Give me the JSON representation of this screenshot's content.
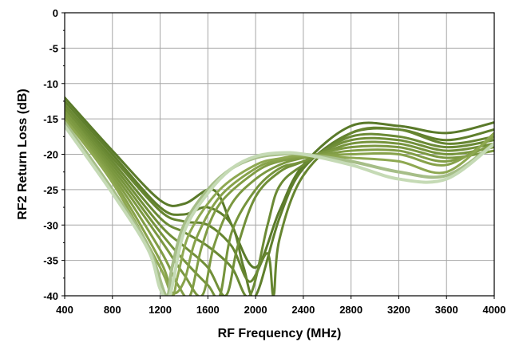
{
  "chart_data": {
    "type": "line",
    "xlabel": "RF Frequency (MHz)",
    "ylabel": "RF2 Return Loss (dB)",
    "xlim": [
      400,
      4000
    ],
    "ylim": [
      -40,
      0
    ],
    "grid": true,
    "x_ticks": [
      "400",
      "800",
      "1200",
      "1600",
      "2000",
      "2400",
      "2800",
      "3200",
      "3600",
      "4000"
    ],
    "y_ticks": [
      "0",
      "-5",
      "-10",
      "-15",
      "-20",
      "-25",
      "-30",
      "-35",
      "-40"
    ],
    "colors": {
      "dark": "#5f7f2c",
      "light": "#c8dcb8",
      "grid": "#a6a6a6"
    },
    "series": [
      {
        "color": "#5a7a2a",
        "x": [
          400,
          800,
          1200,
          1400,
          1600,
          1700,
          1800,
          2000,
          2200,
          2400,
          2800,
          3200,
          3600,
          4000
        ],
        "y": [
          -12.0,
          -19.5,
          -26.5,
          -27.0,
          -25.0,
          -26.0,
          -30.0,
          -36.0,
          -28.0,
          -21.5,
          -16.0,
          -16.0,
          -17.0,
          -15.5
        ]
      },
      {
        "color": "#5f7f2c",
        "x": [
          400,
          800,
          1200,
          1400,
          1600,
          1800,
          1900,
          2000,
          2200,
          2400,
          2800,
          3200,
          3600,
          4000
        ],
        "y": [
          -12.5,
          -20.0,
          -27.5,
          -28.5,
          -27.5,
          -30.0,
          -36.0,
          -40.0,
          -29.0,
          -22.0,
          -17.0,
          -16.5,
          -18.0,
          -16.5
        ]
      },
      {
        "color": "#668530",
        "x": [
          400,
          800,
          1200,
          1400,
          1600,
          1800,
          1950,
          2100,
          2150,
          2200,
          2400,
          2800,
          3200,
          3600,
          4000
        ],
        "y": [
          -13.0,
          -20.5,
          -28.0,
          -29.5,
          -30.0,
          -33.0,
          -38.0,
          -34.0,
          -40.0,
          -32.0,
          -23.0,
          -17.0,
          -16.5,
          -18.5,
          -17.5
        ]
      },
      {
        "color": "#6b8a35",
        "x": [
          400,
          800,
          1200,
          1400,
          1600,
          1800,
          1950,
          2100,
          2200,
          2400,
          2800,
          3200,
          3600,
          4000
        ],
        "y": [
          -13.0,
          -21.0,
          -29.0,
          -31.0,
          -33.0,
          -36.0,
          -40.0,
          -30.0,
          -24.5,
          -21.5,
          -17.5,
          -17.5,
          -19.0,
          -18.0
        ]
      },
      {
        "color": "#718f38",
        "x": [
          400,
          800,
          1200,
          1400,
          1600,
          1750,
          1850,
          2000,
          2200,
          2400,
          2800,
          3200,
          3600,
          4000
        ],
        "y": [
          -13.5,
          -21.5,
          -30.0,
          -33.0,
          -36.0,
          -40.0,
          -33.0,
          -26.0,
          -22.5,
          -21.0,
          -18.0,
          -18.0,
          -19.5,
          -18.5
        ]
      },
      {
        "color": "#76943c",
        "x": [
          400,
          800,
          1200,
          1400,
          1600,
          1700,
          1800,
          2000,
          2200,
          2400,
          2800,
          3200,
          3600,
          4000
        ],
        "y": [
          -14.0,
          -22.0,
          -31.0,
          -35.0,
          -38.5,
          -40.0,
          -31.0,
          -25.0,
          -22.0,
          -21.0,
          -18.5,
          -18.5,
          -20.0,
          -19.0
        ]
      },
      {
        "color": "#7b9840",
        "x": [
          400,
          800,
          1200,
          1400,
          1550,
          1650,
          1800,
          2000,
          2200,
          2400,
          2800,
          3200,
          3600,
          4000
        ],
        "y": [
          -14.0,
          -22.5,
          -32.0,
          -37.0,
          -40.0,
          -33.0,
          -27.0,
          -23.5,
          -21.5,
          -20.5,
          -19.0,
          -19.0,
          -20.5,
          -19.5
        ]
      },
      {
        "color": "#819d45",
        "x": [
          400,
          800,
          1200,
          1350,
          1450,
          1550,
          1700,
          2000,
          2200,
          2400,
          2800,
          3200,
          3600,
          4000
        ],
        "y": [
          -14.5,
          -23.0,
          -33.5,
          -38.5,
          -40.0,
          -33.0,
          -27.0,
          -22.5,
          -21.0,
          -20.5,
          -19.5,
          -19.5,
          -21.0,
          -18.5
        ]
      },
      {
        "color": "#87a24a",
        "x": [
          400,
          800,
          1200,
          1300,
          1400,
          1500,
          1700,
          2000,
          2200,
          2400,
          2800,
          3200,
          3600,
          4000
        ],
        "y": [
          -15.0,
          -23.5,
          -35.0,
          -39.5,
          -38.0,
          -32.0,
          -26.0,
          -22.0,
          -20.8,
          -20.3,
          -20.0,
          -20.0,
          -21.5,
          -17.5
        ]
      },
      {
        "color": "#8ea851",
        "x": [
          400,
          800,
          1200,
          1300,
          1350,
          1450,
          1700,
          2000,
          2200,
          2400,
          2800,
          3200,
          3600,
          4000
        ],
        "y": [
          -15.0,
          -24.0,
          -36.0,
          -40.0,
          -37.0,
          -31.0,
          -25.0,
          -21.5,
          -20.6,
          -20.2,
          -20.5,
          -21.0,
          -22.5,
          -17.0
        ]
      },
      {
        "color": "#a6be88",
        "x": [
          400,
          800,
          1100,
          1250,
          1300,
          1400,
          1600,
          1800,
          2000,
          2200,
          2400,
          2800,
          3200,
          3600,
          4000
        ],
        "y": [
          -15.5,
          -25.0,
          -33.0,
          -40.0,
          -36.0,
          -30.0,
          -25.0,
          -22.0,
          -20.5,
          -20.0,
          -20.0,
          -21.0,
          -22.5,
          -23.0,
          -18.5
        ]
      },
      {
        "color": "#c5dab5",
        "x": [
          400,
          800,
          1100,
          1200,
          1280,
          1400,
          1600,
          1800,
          2000,
          2200,
          2400,
          2800,
          3200,
          3600,
          4000
        ],
        "y": [
          -16.0,
          -25.5,
          -33.5,
          -39.0,
          -40.0,
          -31.0,
          -25.5,
          -22.0,
          -20.3,
          -19.8,
          -20.0,
          -21.5,
          -23.5,
          -23.5,
          -18.5
        ]
      }
    ]
  }
}
